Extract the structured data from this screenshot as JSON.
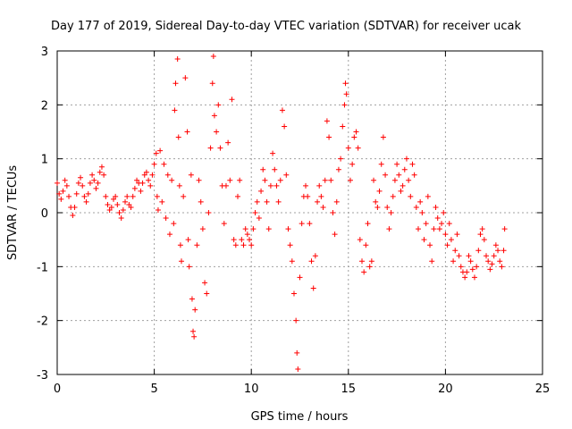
{
  "chart_data": {
    "type": "scatter",
    "title": "Day 177 of 2019, Sidereal Day-to-day VTEC variation (SDTVAR) for receiver ucak",
    "xlabel": "GPS time / hours",
    "ylabel": "SDTVAR / TECUs",
    "xlim": [
      0,
      25
    ],
    "ylim": [
      -3,
      3
    ],
    "xticks": [
      0,
      5,
      10,
      15,
      20,
      25
    ],
    "yticks": [
      -3,
      -2,
      -1,
      0,
      1,
      2,
      3
    ],
    "grid": true,
    "marker": "+",
    "color": "#ff0000",
    "series": [
      {
        "name": "SDTVAR",
        "points": [
          [
            0.0,
            0.55
          ],
          [
            0.1,
            0.35
          ],
          [
            0.2,
            0.25
          ],
          [
            0.3,
            0.4
          ],
          [
            0.4,
            0.6
          ],
          [
            0.5,
            0.5
          ],
          [
            0.6,
            0.3
          ],
          [
            0.7,
            0.1
          ],
          [
            0.8,
            -0.05
          ],
          [
            0.9,
            0.1
          ],
          [
            1.0,
            0.35
          ],
          [
            1.1,
            0.55
          ],
          [
            1.2,
            0.65
          ],
          [
            1.3,
            0.5
          ],
          [
            1.4,
            0.3
          ],
          [
            1.5,
            0.2
          ],
          [
            1.6,
            0.35
          ],
          [
            1.7,
            0.55
          ],
          [
            1.8,
            0.7
          ],
          [
            1.9,
            0.6
          ],
          [
            2.0,
            0.45
          ],
          [
            2.1,
            0.55
          ],
          [
            2.2,
            0.75
          ],
          [
            2.3,
            0.85
          ],
          [
            2.4,
            0.7
          ],
          [
            2.5,
            0.3
          ],
          [
            2.6,
            0.15
          ],
          [
            2.7,
            0.05
          ],
          [
            2.8,
            0.1
          ],
          [
            2.9,
            0.25
          ],
          [
            3.0,
            0.3
          ],
          [
            3.1,
            0.15
          ],
          [
            3.2,
            0.0
          ],
          [
            3.3,
            -0.1
          ],
          [
            3.4,
            0.05
          ],
          [
            3.5,
            0.2
          ],
          [
            3.6,
            0.3
          ],
          [
            3.7,
            0.15
          ],
          [
            3.8,
            0.1
          ],
          [
            3.9,
            0.3
          ],
          [
            4.0,
            0.45
          ],
          [
            4.1,
            0.6
          ],
          [
            4.2,
            0.55
          ],
          [
            4.3,
            0.4
          ],
          [
            4.4,
            0.55
          ],
          [
            4.5,
            0.7
          ],
          [
            4.6,
            0.75
          ],
          [
            4.7,
            0.6
          ],
          [
            4.8,
            0.5
          ],
          [
            4.9,
            0.7
          ],
          [
            5.0,
            0.9
          ],
          [
            5.1,
            1.1
          ],
          [
            5.15,
            0.3
          ],
          [
            5.2,
            0.05
          ],
          [
            5.3,
            1.15
          ],
          [
            5.4,
            0.2
          ],
          [
            5.5,
            0.9
          ],
          [
            5.6,
            -0.1
          ],
          [
            5.7,
            0.7
          ],
          [
            5.8,
            -0.4
          ],
          [
            5.9,
            0.6
          ],
          [
            6.0,
            -0.2
          ],
          [
            6.05,
            1.9
          ],
          [
            6.1,
            2.4
          ],
          [
            6.2,
            2.85
          ],
          [
            6.25,
            1.4
          ],
          [
            6.3,
            0.5
          ],
          [
            6.35,
            -0.6
          ],
          [
            6.4,
            -0.9
          ],
          [
            6.5,
            0.3
          ],
          [
            6.6,
            2.5
          ],
          [
            6.7,
            1.5
          ],
          [
            6.75,
            -0.5
          ],
          [
            6.8,
            -1.0
          ],
          [
            6.9,
            0.7
          ],
          [
            6.95,
            -1.6
          ],
          [
            7.0,
            -2.2
          ],
          [
            7.05,
            -2.3
          ],
          [
            7.1,
            -1.8
          ],
          [
            7.2,
            -0.6
          ],
          [
            7.3,
            0.6
          ],
          [
            7.4,
            0.2
          ],
          [
            7.5,
            -0.3
          ],
          [
            7.6,
            -1.3
          ],
          [
            7.7,
            -1.5
          ],
          [
            7.8,
            0.0
          ],
          [
            7.9,
            1.2
          ],
          [
            8.0,
            2.4
          ],
          [
            8.05,
            2.9
          ],
          [
            8.1,
            1.8
          ],
          [
            8.2,
            1.5
          ],
          [
            8.3,
            2.0
          ],
          [
            8.4,
            1.2
          ],
          [
            8.5,
            0.5
          ],
          [
            8.6,
            -0.2
          ],
          [
            8.7,
            0.5
          ],
          [
            8.8,
            1.3
          ],
          [
            8.9,
            0.6
          ],
          [
            9.0,
            2.1
          ],
          [
            9.1,
            -0.5
          ],
          [
            9.2,
            -0.6
          ],
          [
            9.3,
            0.3
          ],
          [
            9.4,
            0.6
          ],
          [
            9.5,
            -0.5
          ],
          [
            9.6,
            -0.6
          ],
          [
            9.7,
            -0.3
          ],
          [
            9.8,
            -0.4
          ],
          [
            9.9,
            -0.5
          ],
          [
            10.0,
            -0.6
          ],
          [
            10.1,
            -0.3
          ],
          [
            10.2,
            0.0
          ],
          [
            10.3,
            0.2
          ],
          [
            10.4,
            -0.1
          ],
          [
            10.5,
            0.4
          ],
          [
            10.6,
            0.8
          ],
          [
            10.7,
            0.6
          ],
          [
            10.8,
            0.2
          ],
          [
            10.9,
            -0.3
          ],
          [
            11.0,
            0.5
          ],
          [
            11.1,
            1.1
          ],
          [
            11.2,
            0.8
          ],
          [
            11.3,
            0.5
          ],
          [
            11.4,
            0.2
          ],
          [
            11.5,
            0.6
          ],
          [
            11.6,
            1.9
          ],
          [
            11.7,
            1.6
          ],
          [
            11.8,
            0.7
          ],
          [
            11.9,
            -0.3
          ],
          [
            12.0,
            -0.6
          ],
          [
            12.1,
            -0.9
          ],
          [
            12.2,
            -1.5
          ],
          [
            12.3,
            -2.0
          ],
          [
            12.35,
            -2.6
          ],
          [
            12.4,
            -2.9
          ],
          [
            12.5,
            -1.2
          ],
          [
            12.6,
            -0.2
          ],
          [
            12.7,
            0.3
          ],
          [
            12.8,
            0.5
          ],
          [
            12.9,
            0.3
          ],
          [
            13.0,
            -0.2
          ],
          [
            13.1,
            -0.9
          ],
          [
            13.2,
            -1.4
          ],
          [
            13.3,
            -0.8
          ],
          [
            13.4,
            0.2
          ],
          [
            13.5,
            0.5
          ],
          [
            13.6,
            0.3
          ],
          [
            13.7,
            0.1
          ],
          [
            13.8,
            0.6
          ],
          [
            13.9,
            1.7
          ],
          [
            14.0,
            1.4
          ],
          [
            14.1,
            0.6
          ],
          [
            14.2,
            0.0
          ],
          [
            14.3,
            -0.4
          ],
          [
            14.4,
            0.2
          ],
          [
            14.5,
            0.8
          ],
          [
            14.6,
            1.0
          ],
          [
            14.7,
            1.6
          ],
          [
            14.8,
            2.0
          ],
          [
            14.85,
            2.4
          ],
          [
            14.9,
            2.2
          ],
          [
            15.0,
            1.2
          ],
          [
            15.1,
            0.6
          ],
          [
            15.2,
            0.9
          ],
          [
            15.3,
            1.4
          ],
          [
            15.4,
            1.5
          ],
          [
            15.5,
            1.2
          ],
          [
            15.6,
            -0.5
          ],
          [
            15.7,
            -0.9
          ],
          [
            15.8,
            -1.1
          ],
          [
            15.9,
            -0.6
          ],
          [
            16.0,
            -0.2
          ],
          [
            16.1,
            -1.0
          ],
          [
            16.2,
            -0.9
          ],
          [
            16.3,
            0.6
          ],
          [
            16.4,
            0.2
          ],
          [
            16.5,
            0.1
          ],
          [
            16.6,
            0.4
          ],
          [
            16.7,
            0.9
          ],
          [
            16.8,
            1.4
          ],
          [
            16.9,
            0.7
          ],
          [
            17.0,
            0.1
          ],
          [
            17.1,
            -0.3
          ],
          [
            17.2,
            0.0
          ],
          [
            17.3,
            0.3
          ],
          [
            17.4,
            0.6
          ],
          [
            17.5,
            0.9
          ],
          [
            17.6,
            0.7
          ],
          [
            17.7,
            0.4
          ],
          [
            17.8,
            0.5
          ],
          [
            17.9,
            0.8
          ],
          [
            18.0,
            1.0
          ],
          [
            18.1,
            0.6
          ],
          [
            18.2,
            0.3
          ],
          [
            18.3,
            0.9
          ],
          [
            18.4,
            0.7
          ],
          [
            18.5,
            0.1
          ],
          [
            18.6,
            -0.3
          ],
          [
            18.7,
            0.2
          ],
          [
            18.8,
            0.0
          ],
          [
            18.9,
            -0.5
          ],
          [
            19.0,
            -0.2
          ],
          [
            19.1,
            0.3
          ],
          [
            19.2,
            -0.6
          ],
          [
            19.3,
            -0.9
          ],
          [
            19.4,
            -0.3
          ],
          [
            19.5,
            0.1
          ],
          [
            19.6,
            -0.1
          ],
          [
            19.7,
            -0.3
          ],
          [
            19.8,
            -0.2
          ],
          [
            19.9,
            0.0
          ],
          [
            20.0,
            -0.4
          ],
          [
            20.1,
            -0.6
          ],
          [
            20.2,
            -0.2
          ],
          [
            20.3,
            -0.5
          ],
          [
            20.4,
            -0.9
          ],
          [
            20.5,
            -0.7
          ],
          [
            20.6,
            -0.4
          ],
          [
            20.7,
            -0.8
          ],
          [
            20.8,
            -1.0
          ],
          [
            20.9,
            -1.1
          ],
          [
            21.0,
            -1.2
          ],
          [
            21.1,
            -1.1
          ],
          [
            21.2,
            -0.8
          ],
          [
            21.3,
            -0.9
          ],
          [
            21.4,
            -1.05
          ],
          [
            21.5,
            -1.2
          ],
          [
            21.6,
            -1.0
          ],
          [
            21.7,
            -0.7
          ],
          [
            21.8,
            -0.4
          ],
          [
            21.9,
            -0.3
          ],
          [
            22.0,
            -0.5
          ],
          [
            22.1,
            -0.8
          ],
          [
            22.2,
            -0.9
          ],
          [
            22.3,
            -1.05
          ],
          [
            22.4,
            -0.95
          ],
          [
            22.5,
            -0.8
          ],
          [
            22.6,
            -0.6
          ],
          [
            22.7,
            -0.7
          ],
          [
            22.8,
            -0.9
          ],
          [
            22.9,
            -1.0
          ],
          [
            23.0,
            -0.7
          ],
          [
            23.05,
            -0.3
          ]
        ]
      }
    ]
  }
}
